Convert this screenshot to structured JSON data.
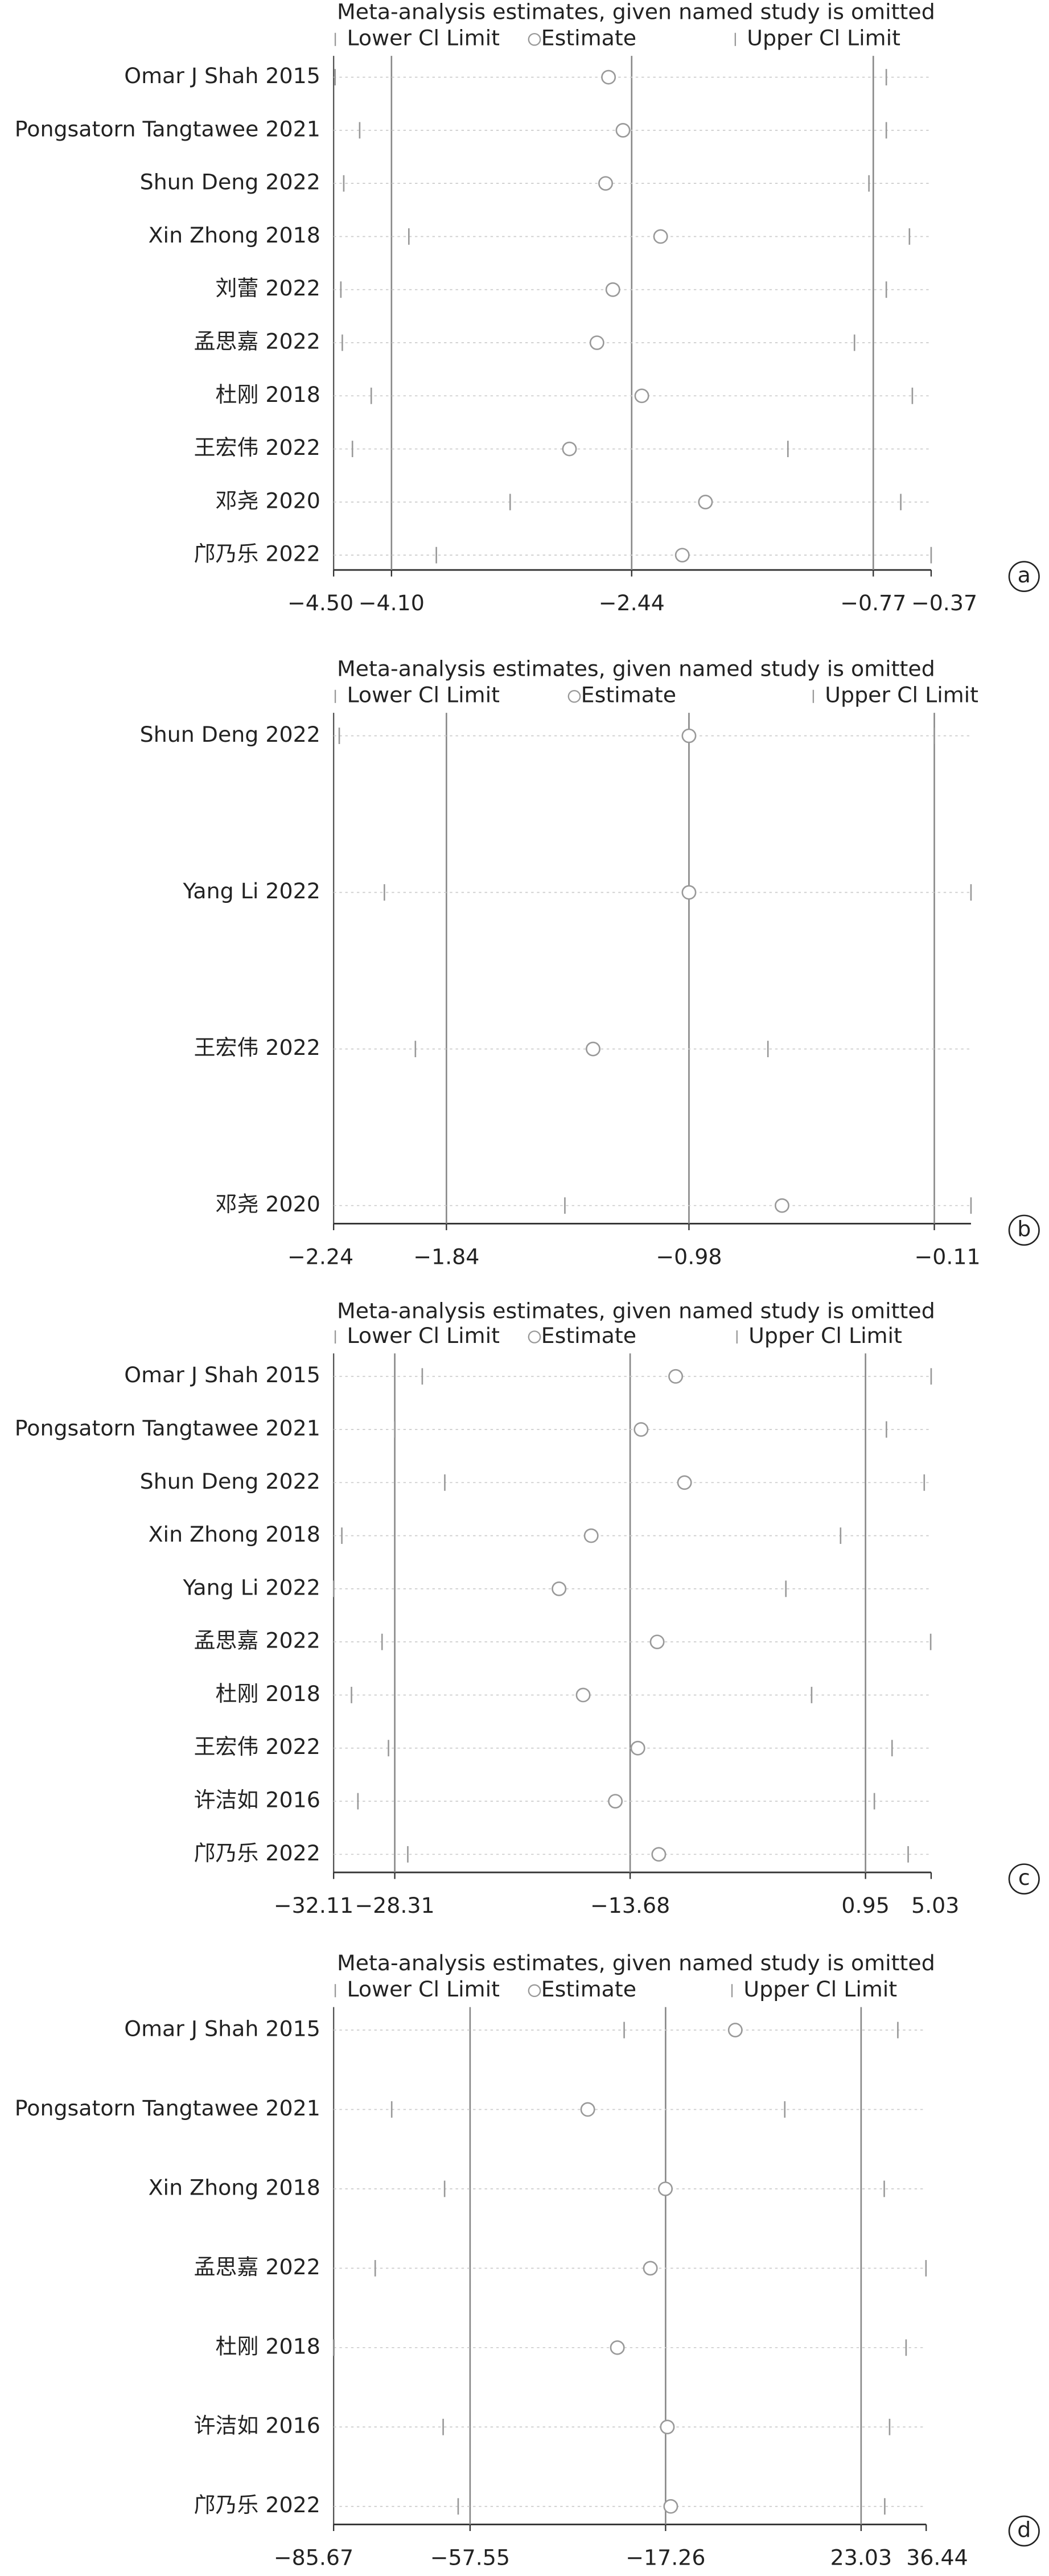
{
  "chart_data": [
    {
      "type": "forest",
      "title": "Meta-analysis estimates, given named study is omitted",
      "panel_label": "a",
      "categories": [
        "Omar J Shah 2015",
        "Pongsatorn Tangtawee 2021",
        "Shun Deng 2022",
        "Xin Zhong 2018",
        "刘蕾 2022",
        "孟思嘉 2022",
        "杜刚 2018",
        "王宏伟 2022",
        "邓尧 2020",
        "邝乃乐 2022"
      ],
      "series": [
        {
          "name": "Lower Cl Limit",
          "color": "#999999",
          "values": [
            -4.49,
            -4.32,
            -4.43,
            -3.98,
            -4.45,
            -4.44,
            -4.24,
            -4.37,
            -3.28,
            -3.79
          ]
        },
        {
          "name": "Estimate",
          "color": "#999999",
          "values": [
            -2.6,
            -2.5,
            -2.62,
            -2.24,
            -2.57,
            -2.68,
            -2.37,
            -2.87,
            -1.93,
            -2.09
          ]
        },
        {
          "name": "Upper Cl Limit",
          "color": "#999999",
          "values": [
            -0.68,
            -0.68,
            -0.8,
            -0.52,
            -0.68,
            -0.9,
            -0.5,
            -1.36,
            -0.58,
            -0.37
          ]
        }
      ],
      "reference_lines": [
        -4.1,
        -2.44,
        -0.77
      ],
      "xlim": [
        -4.5,
        -0.37
      ],
      "xticks": [
        {
          "value": -4.5,
          "label": "−4.50"
        },
        {
          "value": -4.1,
          "label": "−4.10"
        },
        {
          "value": -2.44,
          "label": "−2.44"
        },
        {
          "value": -0.77,
          "label": "−0.77"
        },
        {
          "value": -0.37,
          "label": "−0.37"
        }
      ]
    },
    {
      "type": "forest",
      "title": "Meta-analysis estimates, given named study is omitted",
      "panel_label": "b",
      "categories": [
        "Shun Deng 2022",
        "Yang Li 2022",
        "王宏伟 2022",
        "邓尧 2020"
      ],
      "series": [
        {
          "name": "Lower Cl Limit",
          "color": "#999999",
          "values": [
            -2.22,
            -2.06,
            -1.95,
            -1.42
          ]
        },
        {
          "name": "Estimate",
          "color": "#999999",
          "values": [
            -0.98,
            -0.98,
            -1.32,
            -0.65
          ]
        },
        {
          "name": "Upper Cl Limit",
          "color": "#999999",
          "values": [
            -0.11,
            0.02,
            -0.7,
            0.02
          ]
        }
      ],
      "reference_lines": [
        -1.84,
        -0.98,
        -0.11
      ],
      "xlim": [
        -2.24,
        0.02
      ],
      "xticks": [
        {
          "value": -2.24,
          "label": "−2.24"
        },
        {
          "value": -1.84,
          "label": "−1.84"
        },
        {
          "value": -0.98,
          "label": "−0.98"
        },
        {
          "value": -0.11,
          "label": "−0.11"
        }
      ]
    },
    {
      "type": "forest",
      "title": "Meta-analysis estimates, given named study is omitted",
      "panel_label": "c",
      "categories": [
        "Omar J Shah 2015",
        "Pongsatorn Tangtawee 2021",
        "Shun Deng 2022",
        "Xin Zhong 2018",
        "Yang Li 2022",
        "孟思嘉 2022",
        "杜刚 2018",
        "王宏伟 2022",
        "许洁如 2016",
        "邝乃乐 2022"
      ],
      "series": [
        {
          "name": "Lower Cl Limit",
          "color": "#999999",
          "values": [
            -26.6,
            -28.3,
            -25.2,
            -31.6,
            -32.1,
            -29.1,
            -31.0,
            -28.7,
            -30.6,
            -27.5
          ]
        },
        {
          "name": "Estimate",
          "color": "#999999",
          "values": [
            -10.85,
            -13.0,
            -10.3,
            -16.1,
            -18.1,
            -12.0,
            -16.6,
            -13.2,
            -14.6,
            -11.9
          ]
        },
        {
          "name": "Upper Cl Limit",
          "color": "#999999",
          "values": [
            5.03,
            2.25,
            4.6,
            -0.6,
            -4.0,
            5.0,
            -2.4,
            2.6,
            1.5,
            3.6
          ]
        }
      ],
      "reference_lines": [
        -28.31,
        -13.68,
        0.95
      ],
      "xlim": [
        -32.11,
        5.03
      ],
      "xticks": [
        {
          "value": -32.11,
          "label": "−32.11"
        },
        {
          "value": -28.31,
          "label": "−28.31"
        },
        {
          "value": -13.68,
          "label": "−13.68"
        },
        0.95,
        5.03
      ]
    },
    {
      "type": "forest",
      "title": "Meta-analysis estimates, given named study is omitted",
      "panel_label": "d",
      "categories": [
        "Omar J Shah 2015",
        "Pongsatorn Tangtawee 2021",
        "Xin Zhong 2018",
        "孟思嘉 2022",
        "杜刚 2018",
        "许洁如 2016",
        "邝乃乐 2022"
      ],
      "series": [
        {
          "name": "Lower Cl Limit",
          "color": "#999999",
          "values": [
            -25.8,
            -73.7,
            -62.8,
            -77.1,
            -85.6,
            -63.1,
            -60.0
          ]
        },
        {
          "name": "Estimate",
          "color": "#999999",
          "values": [
            -2.9,
            -33.3,
            -17.3,
            -20.4,
            -27.2,
            -16.9,
            -16.2
          ]
        },
        {
          "name": "Upper Cl Limit",
          "color": "#999999",
          "values": [
            30.6,
            7.3,
            27.8,
            36.4,
            32.3,
            28.9,
            27.9
          ]
        }
      ],
      "reference_lines": [
        -57.55,
        -17.26,
        23.03
      ],
      "xlim": [
        -85.67,
        36.44
      ],
      "xticks": [
        {
          "value": -85.67,
          "label": "−85.67"
        },
        {
          "value": -57.55,
          "label": "−57.55"
        },
        {
          "value": -17.26,
          "label": "−17.26"
        },
        23.03,
        36.44
      ]
    }
  ]
}
